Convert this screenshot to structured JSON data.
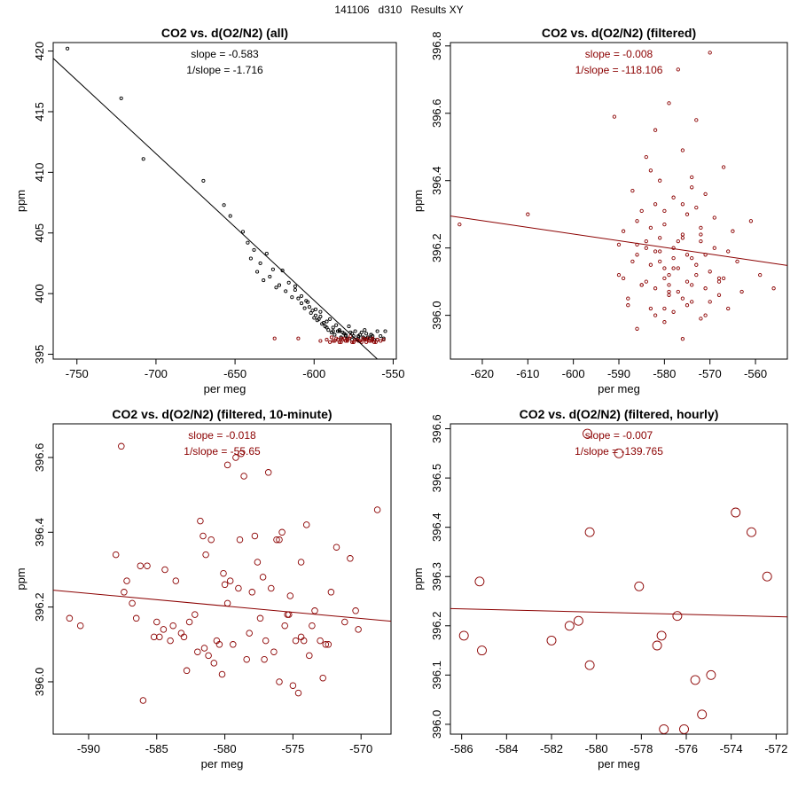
{
  "page": {
    "title": "141106   d310   Results XY"
  },
  "chart_data": [
    {
      "type": "scatter",
      "title": "CO2 vs. d(O2/N2) (all)",
      "xlabel": "per meg",
      "ylabel": "ppm",
      "xlim": [
        -765,
        -548
      ],
      "ylim": [
        394.6,
        420.7
      ],
      "xticks": [
        -750,
        -700,
        -650,
        -600,
        -550
      ],
      "yticks": [
        395,
        400,
        405,
        410,
        415,
        420
      ],
      "annotations": [
        "slope = -0.583",
        "1/slope = -1.716"
      ],
      "fit_line": {
        "slope": -0.583,
        "points": [
          [
            -765,
            419.4
          ],
          [
            -560,
            394.6
          ]
        ]
      },
      "colors": {
        "all": "#000000",
        "filtered": "#8b0000"
      },
      "series": [
        {
          "role": "all",
          "color": "#000000",
          "x": [
            -756,
            -722,
            -708,
            -670,
            -657,
            -653,
            -645,
            -642,
            -640,
            -638,
            -636,
            -634,
            -632,
            -630,
            -628,
            -626,
            -624,
            -622,
            -620,
            -618,
            -616,
            -614,
            -612,
            -610,
            -608,
            -606,
            -604,
            -602,
            -600,
            -598,
            -596,
            -594,
            -592,
            -590,
            -588,
            -586,
            -584,
            -582,
            -580,
            -578,
            -576,
            -574,
            -572,
            -570,
            -568,
            -566,
            -564,
            -562,
            -560,
            -558,
            -556,
            -612,
            -608,
            -605,
            -603,
            -601,
            -599,
            -597,
            -595,
            -593,
            -591,
            -589,
            -587,
            -585,
            -583,
            -581,
            -579,
            -577,
            -575,
            -573,
            -571,
            -569,
            -567,
            -565,
            -563,
            -599,
            -596,
            -592,
            -588,
            -584,
            -580,
            -576,
            -572,
            -568,
            -564,
            -560,
            -555
          ],
          "y": [
            420.2,
            416.1,
            411.1,
            409.3,
            407.3,
            406.4,
            405.1,
            404.2,
            402.9,
            403.6,
            401.8,
            402.5,
            401.1,
            403.3,
            401.4,
            402.0,
            400.5,
            400.7,
            401.9,
            400.2,
            400.9,
            399.7,
            400.3,
            399.6,
            399.2,
            398.8,
            399.3,
            398.4,
            398.0,
            397.8,
            398.5,
            397.6,
            397.2,
            397.9,
            396.9,
            397.4,
            397.0,
            396.8,
            396.6,
            397.3,
            396.7,
            396.9,
            396.5,
            396.8,
            397.0,
            396.4,
            396.6,
            396.2,
            396.9,
            396.5,
            396.3,
            400.6,
            399.8,
            399.4,
            398.9,
            398.6,
            398.2,
            397.9,
            397.5,
            397.3,
            397.0,
            396.8,
            396.6,
            396.9,
            396.4,
            396.7,
            396.3,
            396.8,
            396.5,
            396.2,
            396.6,
            396.4,
            396.7,
            396.3,
            396.5,
            398.7,
            398.1,
            397.7,
            397.2,
            396.9,
            396.5,
            396.2,
            396.4,
            396.3,
            396.6,
            396.2,
            396.9
          ]
        },
        {
          "role": "filtered",
          "color": "#8b0000",
          "x": [
            -625,
            -610,
            -596,
            -592,
            -590,
            -588,
            -586,
            -584,
            -582,
            -580,
            -578,
            -576,
            -574,
            -572,
            -570,
            -568,
            -566,
            -564,
            -562,
            -560,
            -558,
            -556,
            -589,
            -585,
            -583,
            -581,
            -579,
            -577,
            -575,
            -573,
            -571,
            -569,
            -567,
            -565,
            -563,
            -561,
            -587,
            -583,
            -579,
            -575,
            -571,
            -567,
            -563
          ],
          "y": [
            396.3,
            396.3,
            396.1,
            396.2,
            396.0,
            396.1,
            396.3,
            396.0,
            396.2,
            396.1,
            396.3,
            396.0,
            396.2,
            396.1,
            396.0,
            396.2,
            396.3,
            396.1,
            396.0,
            396.2,
            396.1,
            396.2,
            396.4,
            396.2,
            396.0,
            396.3,
            396.1,
            396.5,
            396.0,
            396.2,
            396.1,
            396.3,
            396.0,
            396.1,
            396.2,
            396.0,
            396.1,
            396.3,
            396.2,
            396.0,
            396.1,
            396.2,
            396.3
          ]
        }
      ]
    },
    {
      "type": "scatter",
      "title": "CO2 vs. d(O2/N2) (filtered)",
      "xlabel": "per meg",
      "ylabel": "ppm",
      "xlim": [
        -627,
        -553
      ],
      "ylim": [
        395.87,
        396.81
      ],
      "xticks": [
        -620,
        -610,
        -600,
        -590,
        -580,
        -570,
        -560
      ],
      "yticks": [
        396.0,
        396.2,
        396.4,
        396.6,
        396.8
      ],
      "annotations": [
        "slope = -0.008",
        "1/slope = -118.106"
      ],
      "fit_line": {
        "slope": -0.008,
        "points": [
          [
            -627,
            396.295
          ],
          [
            -553,
            396.148
          ]
        ]
      },
      "colors": {
        "points": "#8b0000"
      },
      "series": [
        {
          "color": "#8b0000",
          "x": [
            -625,
            -610,
            -591,
            -590,
            -589,
            -588,
            -587,
            -586,
            -586,
            -585,
            -585,
            -584,
            -584,
            -583,
            -583,
            -582,
            -582,
            -582,
            -581,
            -581,
            -580,
            -580,
            -580,
            -579,
            -579,
            -578,
            -578,
            -578,
            -577,
            -577,
            -576,
            -576,
            -576,
            -575,
            -575,
            -574,
            -574,
            -573,
            -573,
            -572,
            -572,
            -571,
            -571,
            -570,
            -569,
            -568,
            -567,
            -566,
            -565,
            -564,
            -563,
            -561,
            -559,
            -556,
            -590,
            -588,
            -586,
            -584,
            -582,
            -580,
            -578,
            -576,
            -574,
            -572,
            -570,
            -568,
            -566,
            -587,
            -583,
            -579,
            -575,
            -571,
            -585,
            -581,
            -577,
            -573,
            -569,
            -589,
            -584,
            -580,
            -576,
            -572,
            -568,
            -578,
            -574,
            -582,
            -577,
            -583,
            -579,
            -575,
            -571,
            -586,
            -580,
            -574,
            -576,
            -579,
            -581,
            -573,
            -570,
            -567
          ],
          "y": [
            396.27,
            396.3,
            396.59,
            396.12,
            396.25,
            396.03,
            396.37,
            396.18,
            395.96,
            396.31,
            396.09,
            396.22,
            396.47,
            396.02,
            396.15,
            396.33,
            396.08,
            396.55,
            396.19,
            396.4,
            396.11,
            396.27,
            395.98,
            396.63,
            396.06,
            396.2,
            396.35,
            396.01,
            396.73,
            396.14,
            396.24,
            396.49,
            395.93,
            396.1,
            396.3,
            396.04,
            396.17,
            396.58,
            396.12,
            396.22,
            395.99,
            396.36,
            396.08,
            396.78,
            396.2,
            396.11,
            396.44,
            396.02,
            396.25,
            396.16,
            396.07,
            396.28,
            396.12,
            396.08,
            396.21,
            396.05,
            396.28,
            396.1,
            396.19,
            396.02,
            396.14,
            396.33,
            396.09,
            396.24,
            396.13,
            396.06,
            396.19,
            396.16,
            396.26,
            396.12,
            396.03,
            396.18,
            396.09,
            396.23,
            396.07,
            396.15,
            396.29,
            396.11,
            396.2,
            396.31,
            396.05,
            396.26,
            396.1,
            396.17,
            396.38,
            396.0,
            396.22,
            396.43,
            396.09,
            396.18,
            396.0,
            396.21,
            396.14,
            396.41,
            396.23,
            396.07,
            396.16,
            396.32,
            396.04,
            396.11
          ]
        }
      ]
    },
    {
      "type": "scatter",
      "title": "CO2 vs. d(O2/N2) (filtered, 10-minute)",
      "xlabel": "per meg",
      "ylabel": "ppm",
      "xlim": [
        -592.6,
        -567.8
      ],
      "ylim": [
        395.86,
        396.69
      ],
      "xticks": [
        -590,
        -585,
        -580,
        -575,
        -570
      ],
      "yticks": [
        396.0,
        396.2,
        396.4,
        396.6
      ],
      "annotations": [
        "slope = -0.018",
        "1/slope = -55.65"
      ],
      "fit_line": {
        "slope": -0.018,
        "points": [
          [
            -592.6,
            396.245
          ],
          [
            -567.8,
            396.162
          ]
        ]
      },
      "colors": {
        "points": "#8b0000"
      },
      "series": [
        {
          "color": "#8b0000",
          "x": [
            -591.4,
            -590.6,
            -588.0,
            -587.6,
            -587.4,
            -587.2,
            -586.8,
            -586.5,
            -586.2,
            -586.0,
            -585.7,
            -585.0,
            -584.8,
            -584.5,
            -584.4,
            -584.0,
            -583.8,
            -583.6,
            -583.2,
            -582.8,
            -582.6,
            -582.2,
            -582.0,
            -581.8,
            -581.6,
            -581.4,
            -581.2,
            -581.0,
            -580.8,
            -580.6,
            -580.4,
            -580.2,
            -580.0,
            -579.8,
            -579.6,
            -579.4,
            -579.2,
            -579.0,
            -578.8,
            -578.6,
            -578.4,
            -578.2,
            -578.0,
            -577.8,
            -577.6,
            -577.4,
            -577.2,
            -577.0,
            -576.8,
            -576.6,
            -576.4,
            -576.2,
            -576.0,
            -575.8,
            -575.6,
            -575.4,
            -575.2,
            -575.0,
            -574.8,
            -574.6,
            -574.4,
            -574.2,
            -574.0,
            -573.8,
            -573.6,
            -573.4,
            -573.0,
            -572.8,
            -572.6,
            -572.4,
            -572.2,
            -571.8,
            -571.2,
            -570.8,
            -570.4,
            -570.2,
            -568.8,
            -579.8,
            -585.2,
            -583.0,
            -581.5,
            -577.1,
            -575.3,
            -578.9,
            -580.1,
            -576.0,
            -574.4
          ],
          "y": [
            396.17,
            396.15,
            396.34,
            396.63,
            396.24,
            396.27,
            396.21,
            396.17,
            396.31,
            395.95,
            396.31,
            396.16,
            396.12,
            396.14,
            396.3,
            396.11,
            396.15,
            396.27,
            396.13,
            396.03,
            396.16,
            396.18,
            396.08,
            396.43,
            396.39,
            396.34,
            396.07,
            396.38,
            396.05,
            396.11,
            396.1,
            396.02,
            396.26,
            396.21,
            396.27,
            396.1,
            396.6,
            396.25,
            396.61,
            396.55,
            396.06,
            396.13,
            396.24,
            396.39,
            396.32,
            396.17,
            396.28,
            396.11,
            396.56,
            396.25,
            396.08,
            396.38,
            396.38,
            396.4,
            396.15,
            396.18,
            396.23,
            395.99,
            396.11,
            395.97,
            396.32,
            396.11,
            396.42,
            396.07,
            396.15,
            396.19,
            396.11,
            396.01,
            396.1,
            396.1,
            396.24,
            396.36,
            396.16,
            396.33,
            396.19,
            396.14,
            396.46,
            396.58,
            396.12,
            396.12,
            396.09,
            396.06,
            396.18,
            396.38,
            396.29,
            396.0,
            396.12
          ]
        }
      ]
    },
    {
      "type": "scatter",
      "title": "CO2 vs. d(O2/N2) (filtered, hourly)",
      "xlabel": "per meg",
      "ylabel": "ppm",
      "xlim": [
        -586.5,
        -571.5
      ],
      "ylim": [
        395.98,
        396.61
      ],
      "xticks": [
        -586,
        -584,
        -582,
        -580,
        -578,
        -576,
        -574,
        -572
      ],
      "yticks": [
        396.0,
        396.1,
        396.2,
        396.3,
        396.4,
        396.5,
        396.6
      ],
      "annotations": [
        "slope = -0.007",
        "1/slope = -139.765"
      ],
      "fit_line": {
        "slope": -0.007,
        "points": [
          [
            -586.5,
            396.235
          ],
          [
            -571.5,
            396.218
          ]
        ]
      },
      "colors": {
        "points": "#8b0000"
      },
      "series": [
        {
          "color": "#8b0000",
          "x": [
            -585.9,
            -585.2,
            -585.1,
            -582.0,
            -581.2,
            -580.8,
            -580.3,
            -580.3,
            -580.4,
            -579.0,
            -578.1,
            -577.3,
            -577.1,
            -577.0,
            -576.4,
            -576.1,
            -575.6,
            -575.3,
            -574.9,
            -573.8,
            -573.1,
            -572.4
          ],
          "y": [
            396.18,
            396.29,
            396.15,
            396.17,
            396.2,
            396.21,
            396.12,
            396.39,
            396.59,
            396.55,
            396.28,
            396.16,
            396.18,
            395.99,
            396.22,
            395.99,
            396.09,
            396.02,
            396.1,
            396.43,
            396.39,
            396.3
          ]
        }
      ]
    }
  ]
}
